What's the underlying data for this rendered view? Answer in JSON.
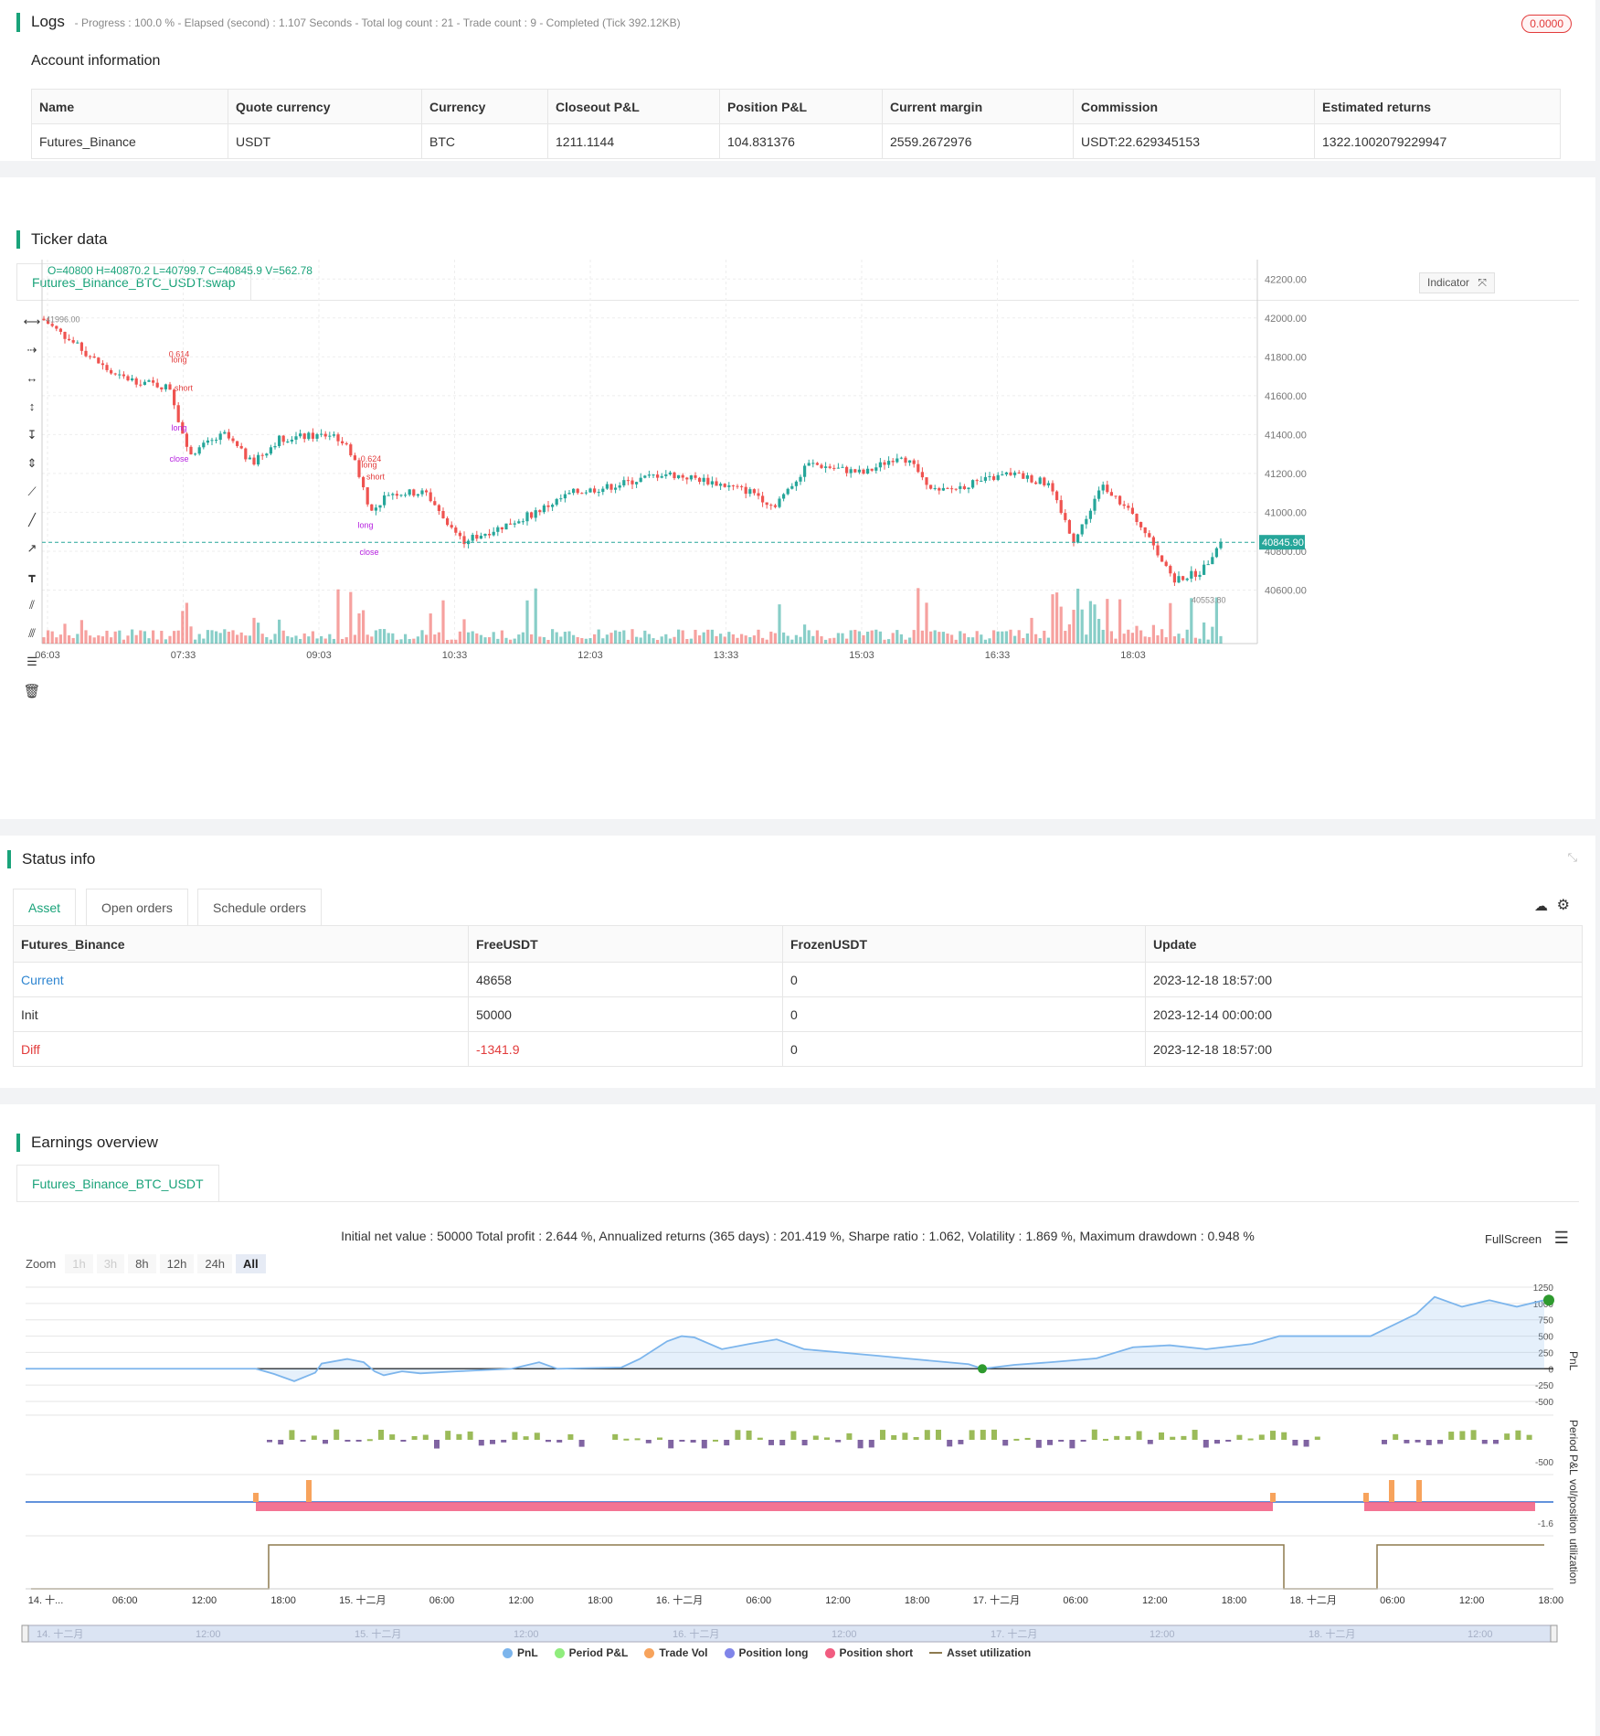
{
  "logs": {
    "title": "Logs",
    "summary": "- Progress : 100.0 % - Elapsed (second) : 1.107 Seconds - Total log count : 21 - Trade count : 9 - Completed (Tick 392.12KB)",
    "badge": "0.0000"
  },
  "account": {
    "title": "Account information",
    "headers": [
      "Name",
      "Quote currency",
      "Currency",
      "Closeout P&L",
      "Position P&L",
      "Current margin",
      "Commission",
      "Estimated returns"
    ],
    "row": [
      "Futures_Binance",
      "USDT",
      "BTC",
      "1211.1144",
      "104.831376",
      "2559.2672976",
      "USDT:22.629345153",
      "1322.1002079229947"
    ]
  },
  "ticker": {
    "title": "Ticker data",
    "tab": "Futures_Binance_BTC_USDT:swap",
    "ohlc": "O=40800 H=40870.2 L=40799.7 C=40845.9 V=562.78",
    "indicator_label": "Indicator",
    "price_label": "40845.90",
    "high_label": "41996.00",
    "low_label": "40553.80",
    "y_ticks": [
      "42200.00",
      "42000.00",
      "41800.00",
      "41600.00",
      "41400.00",
      "41200.00",
      "41000.00",
      "40800.00",
      "40600.00"
    ],
    "x_ticks": [
      "06:03",
      "07:33",
      "09:03",
      "10:33",
      "12:03",
      "13:33",
      "15:03",
      "16:33",
      "18:03"
    ],
    "trade_labels": [
      "0.614",
      "long",
      "short",
      "long",
      "close",
      "0.624",
      "long",
      "short",
      "long",
      "close"
    ]
  },
  "status": {
    "title": "Status info",
    "tabs": [
      "Asset",
      "Open orders",
      "Schedule orders"
    ],
    "headers": [
      "Futures_Binance",
      "FreeUSDT",
      "FrozenUSDT",
      "Update"
    ],
    "rows": [
      [
        "Current",
        "48658",
        "0",
        "2023-12-18 18:57:00"
      ],
      [
        "Init",
        "50000",
        "0",
        "2023-12-14 00:00:00"
      ],
      [
        "Diff",
        "-1341.9",
        "0",
        "2023-12-18 18:57:00"
      ]
    ]
  },
  "earnings": {
    "title": "Earnings overview",
    "tab": "Futures_Binance_BTC_USDT",
    "summary": "Initial net value : 50000 Total profit : 2.644 %, Annualized returns (365 days) : 201.419 %, Sharpe ratio : 1.062, Volatility : 1.869 %, Maximum drawdown : 0.948 %",
    "fullscreen": "FullScreen",
    "zoom_label": "Zoom",
    "zoom_buttons": [
      "1h",
      "3h",
      "8h",
      "12h",
      "24h",
      "All"
    ],
    "pnl_ticks": [
      "1250",
      "1000",
      "750",
      "500",
      "250",
      "0",
      "-250",
      "-500"
    ],
    "period_tick": "-500",
    "pos_tick": "-1.6",
    "axis_labels": [
      "PnL",
      "Period P&L",
      "vol/position",
      "utilization"
    ],
    "x_ticks": [
      "14. 十...",
      "06:00",
      "12:00",
      "18:00",
      "15. 十二月",
      "06:00",
      "12:00",
      "18:00",
      "16. 十二月",
      "06:00",
      "12:00",
      "18:00",
      "17. 十二月",
      "06:00",
      "12:00",
      "18:00",
      "18. 十二月",
      "06:00",
      "12:00",
      "18:00"
    ],
    "nav_ticks": [
      "14. 十二月",
      "12:00",
      "15. 十二月",
      "12:00",
      "16. 十二月",
      "12:00",
      "17. 十二月",
      "12:00",
      "18. 十二月",
      "12:00"
    ],
    "legend": [
      {
        "name": "PnL",
        "color": "#7cb5ec"
      },
      {
        "name": "Period P&L",
        "color": "#90ed7d"
      },
      {
        "name": "Trade Vol",
        "color": "#f7a35c"
      },
      {
        "name": "Position long",
        "color": "#8085e9"
      },
      {
        "name": "Position short",
        "color": "#f15c80"
      },
      {
        "name": "Asset utilization",
        "color": "#8d7a4f"
      }
    ]
  }
}
